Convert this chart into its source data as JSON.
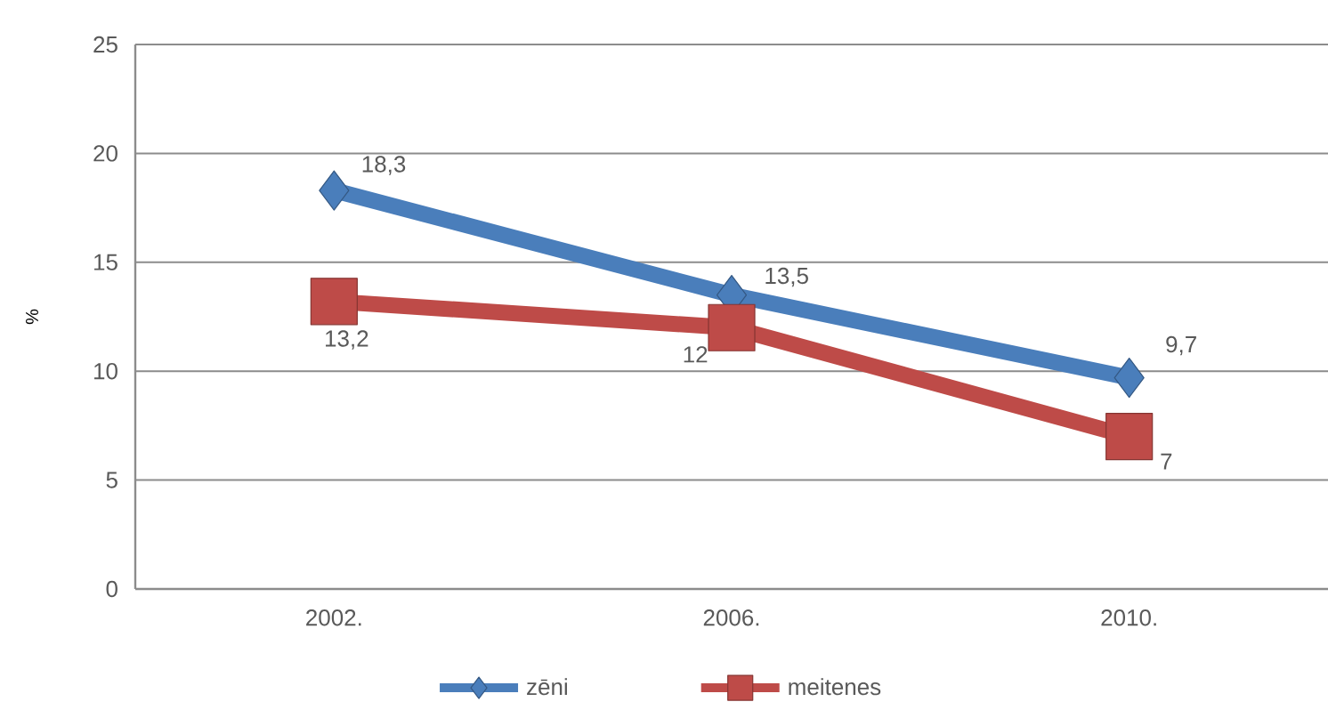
{
  "chart_data": {
    "type": "line",
    "ylabel": "%",
    "categories": [
      "2002.",
      "2006.",
      "2010."
    ],
    "series": [
      {
        "name": "zēni",
        "color": "#4a7ebb",
        "marker": "diamond",
        "values": [
          18.3,
          13.5,
          9.7
        ],
        "value_labels": [
          "18,3",
          "13,5",
          "9,7"
        ]
      },
      {
        "name": "meitenes",
        "color": "#be4b48",
        "marker": "square",
        "values": [
          13.2,
          12,
          7
        ],
        "value_labels": [
          "13,2",
          "12",
          "7"
        ]
      }
    ],
    "ylim": [
      0,
      25
    ],
    "yticks": [
      0,
      5,
      10,
      15,
      20,
      25
    ],
    "grid": "y",
    "legend": "bottom",
    "line_style": "solid"
  }
}
